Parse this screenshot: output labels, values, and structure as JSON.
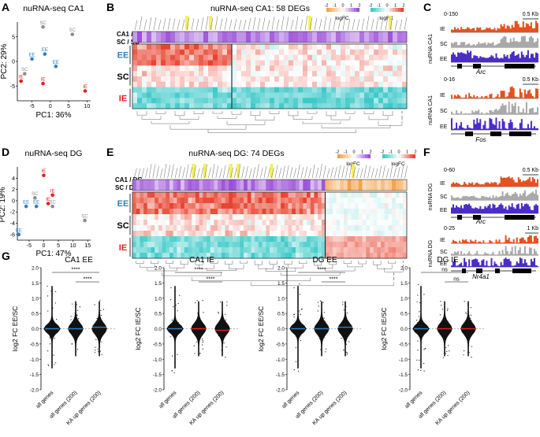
{
  "panels": {
    "A": {
      "letter": "A",
      "title": "nuRNA-seq CA1",
      "xlabel": "PC1: 36%",
      "ylabel": "PC2: 29%"
    },
    "B": {
      "letter": "B",
      "title": "nuRNA-seq CA1: 58 DEGs",
      "row_groups": [
        "EE",
        "SC",
        "IE"
      ],
      "bar_label_top": "CA1 / DG",
      "bar_label_bottom": "SC / SC",
      "legend1_ticks": [
        "-2",
        "-1",
        "0",
        "1",
        "2"
      ],
      "legend2_ticks": [
        "-2",
        "-1",
        "0",
        "1",
        "2"
      ],
      "legend_label": "logFC"
    },
    "C": {
      "letter": "C",
      "track1": {
        "range": "0-150",
        "scale": "0.5 Kb",
        "gene": "Arc",
        "side": "nuRNA CA1",
        "rows": [
          "IE",
          "SC",
          "EE"
        ]
      },
      "track2": {
        "range": "0-16",
        "scale": "0.5 Kb",
        "gene": "Fos",
        "side": "nuRNA CA1",
        "rows": [
          "IE",
          "SC",
          "EE"
        ]
      }
    },
    "D": {
      "letter": "D",
      "title": "nuRNA-seq DG",
      "xlabel": "PC1: 47%",
      "ylabel": "PC2: 19%"
    },
    "E": {
      "letter": "E",
      "title": "nuRNA-seq DG: 74 DEGs",
      "row_groups": [
        "EE",
        "SC",
        "IE"
      ],
      "bar_label_top": "CA1 / DG",
      "bar_label_bottom": "SC / DG",
      "legend1_ticks": [
        "-2",
        "-1",
        "0",
        "1",
        "2"
      ],
      "legend2_ticks": [
        "-2",
        "-1",
        "0",
        "1",
        "2"
      ],
      "legend_label": "logFC"
    },
    "F": {
      "letter": "F",
      "track1": {
        "range": "0-60",
        "scale": "0.5 Kb",
        "gene": "Arc",
        "side": "nuRNA DG",
        "rows": [
          "IE",
          "SC",
          "EE"
        ]
      },
      "track2": {
        "range": "0-25",
        "scale": "1 Kb",
        "gene": "Nr4a1",
        "side": "nuRNA DG",
        "rows": [
          "IE",
          "SC",
          "EE"
        ]
      }
    },
    "G": {
      "letter": "G"
    }
  },
  "chart_data": [
    {
      "type": "scatter",
      "title": "nuRNA-seq CA1",
      "xlabel": "PC1: 36%",
      "ylabel": "PC2: 29%",
      "xticks": [
        "-5",
        "0",
        "5",
        "10"
      ],
      "yticks": [
        "5",
        "0",
        "-5"
      ],
      "xlim": [
        -9,
        11
      ],
      "ylim": [
        -8,
        8
      ],
      "series": [
        {
          "name": "SC",
          "color": "#8c8c8c",
          "points": [
            {
              "x": -2,
              "y": 7,
              "label": "SC"
            },
            {
              "x": 6,
              "y": 5.5,
              "label": "SC"
            },
            {
              "x": -7,
              "y": -2.5,
              "label": "SC"
            }
          ]
        },
        {
          "name": "EE",
          "color": "#2f7fc1",
          "points": [
            {
              "x": -5,
              "y": 0.5,
              "label": "EE"
            },
            {
              "x": -1.5,
              "y": 1.5,
              "label": "EE"
            },
            {
              "x": 1.5,
              "y": -1,
              "label": "EE"
            }
          ]
        },
        {
          "name": "IE",
          "color": "#e0201b",
          "points": [
            {
              "x": -8,
              "y": -4,
              "label": "IE"
            },
            {
              "x": -2,
              "y": -4.5,
              "label": "IE"
            },
            {
              "x": 9.5,
              "y": -6,
              "label": "IE"
            }
          ]
        }
      ]
    },
    {
      "type": "scatter",
      "title": "nuRNA-seq DG",
      "xlabel": "PC1: 47%",
      "ylabel": "PC2: 19%",
      "xticks": [
        "-5",
        "0",
        "5",
        "10",
        "15"
      ],
      "yticks": [
        "4",
        "2",
        "0",
        "-2",
        "-4",
        "-6"
      ],
      "xlim": [
        -9,
        16
      ],
      "ylim": [
        -7,
        6
      ],
      "series": [
        {
          "name": "SC",
          "color": "#8c8c8c",
          "points": [
            {
              "x": -3,
              "y": 0.5,
              "label": "SC"
            },
            {
              "x": 3,
              "y": -1,
              "label": "SC"
            },
            {
              "x": 14,
              "y": -3.5,
              "label": "SC"
            }
          ]
        },
        {
          "name": "EE",
          "color": "#2f7fc1",
          "points": [
            {
              "x": -6,
              "y": -1,
              "label": "EE"
            },
            {
              "x": -2.5,
              "y": -1,
              "label": "EE"
            },
            {
              "x": -8.5,
              "y": -6,
              "label": "EE"
            }
          ]
        },
        {
          "name": "IE",
          "color": "#e0201b",
          "points": [
            {
              "x": 0,
              "y": 4.5,
              "label": "IE"
            },
            {
              "x": 1.5,
              "y": -0.5,
              "label": "IE"
            },
            {
              "x": 3,
              "y": 1,
              "label": "IE"
            }
          ]
        }
      ]
    },
    {
      "type": "scatter",
      "title": "CA1 EE",
      "ylabel": "log2 FC EE/SC",
      "ylim": [
        -2,
        2
      ],
      "yticks": [
        "2.0",
        "1.5",
        "1.0",
        "0.5",
        "0.0",
        "-0.5",
        "-1.0",
        "-1.5",
        "-2.0"
      ],
      "categories": [
        "all genes",
        "all genes (200)",
        "KA up genes (200)"
      ],
      "medians": [
        0.0,
        0.0,
        0.05
      ],
      "significance": [
        "****",
        "****"
      ]
    },
    {
      "type": "scatter",
      "title": "CA1 IE",
      "ylabel": "log2 FC IE/SC",
      "ylim": [
        -2,
        2
      ],
      "yticks": [
        "2.0",
        "1.5",
        "1.0",
        "0.5",
        "0.0",
        "-0.5",
        "-1.0",
        "-1.5",
        "-2.0"
      ],
      "categories": [
        "all genes",
        "all genes (200)",
        "KA up genes (200)"
      ],
      "medians": [
        0.0,
        0.0,
        -0.05
      ],
      "significance": [
        "****",
        "****"
      ]
    },
    {
      "type": "scatter",
      "title": "DG EE",
      "ylabel": "log2 FC EE/SC",
      "ylim": [
        -2,
        2
      ],
      "yticks": [
        "2.0",
        "1.5",
        "1.0",
        "0.5",
        "0.0",
        "-0.5",
        "-1.0",
        "-1.5",
        "-2.0"
      ],
      "categories": [
        "all genes",
        "all genes (200)",
        "KA up genes (200)"
      ],
      "medians": [
        0.0,
        0.0,
        0.05
      ],
      "significance": [
        "****",
        "****"
      ]
    },
    {
      "type": "scatter",
      "title": "DG IE",
      "ylabel": "log2 FC IE/SC",
      "ylim": [
        -2,
        2
      ],
      "yticks": [
        "2.0",
        "1.5",
        "1.0",
        "0.5",
        "0.0",
        "-0.5",
        "-1.0",
        "-1.5",
        "-2.0"
      ],
      "categories": [
        "all genes",
        "all genes (200)",
        "KA up genes (200)"
      ],
      "medians": [
        0.0,
        0.0,
        0.0
      ],
      "significance": [
        "ns",
        "ns"
      ]
    }
  ],
  "colors": {
    "ee": "#2f7fc1",
    "sc": "#8c8c8c",
    "ie": "#e0201b",
    "track_ie": "#e5521f",
    "track_sc": "#a9a9a9",
    "track_ee": "#4b2cc9",
    "violin": "#111111",
    "median_blue": "#2f7fc1",
    "median_red": "#e0201b",
    "heat_red": "#e8432f",
    "heat_cyan": "#3ec9c9",
    "heat_purple": "#9b4fd8",
    "heat_orange": "#f5a04a"
  }
}
